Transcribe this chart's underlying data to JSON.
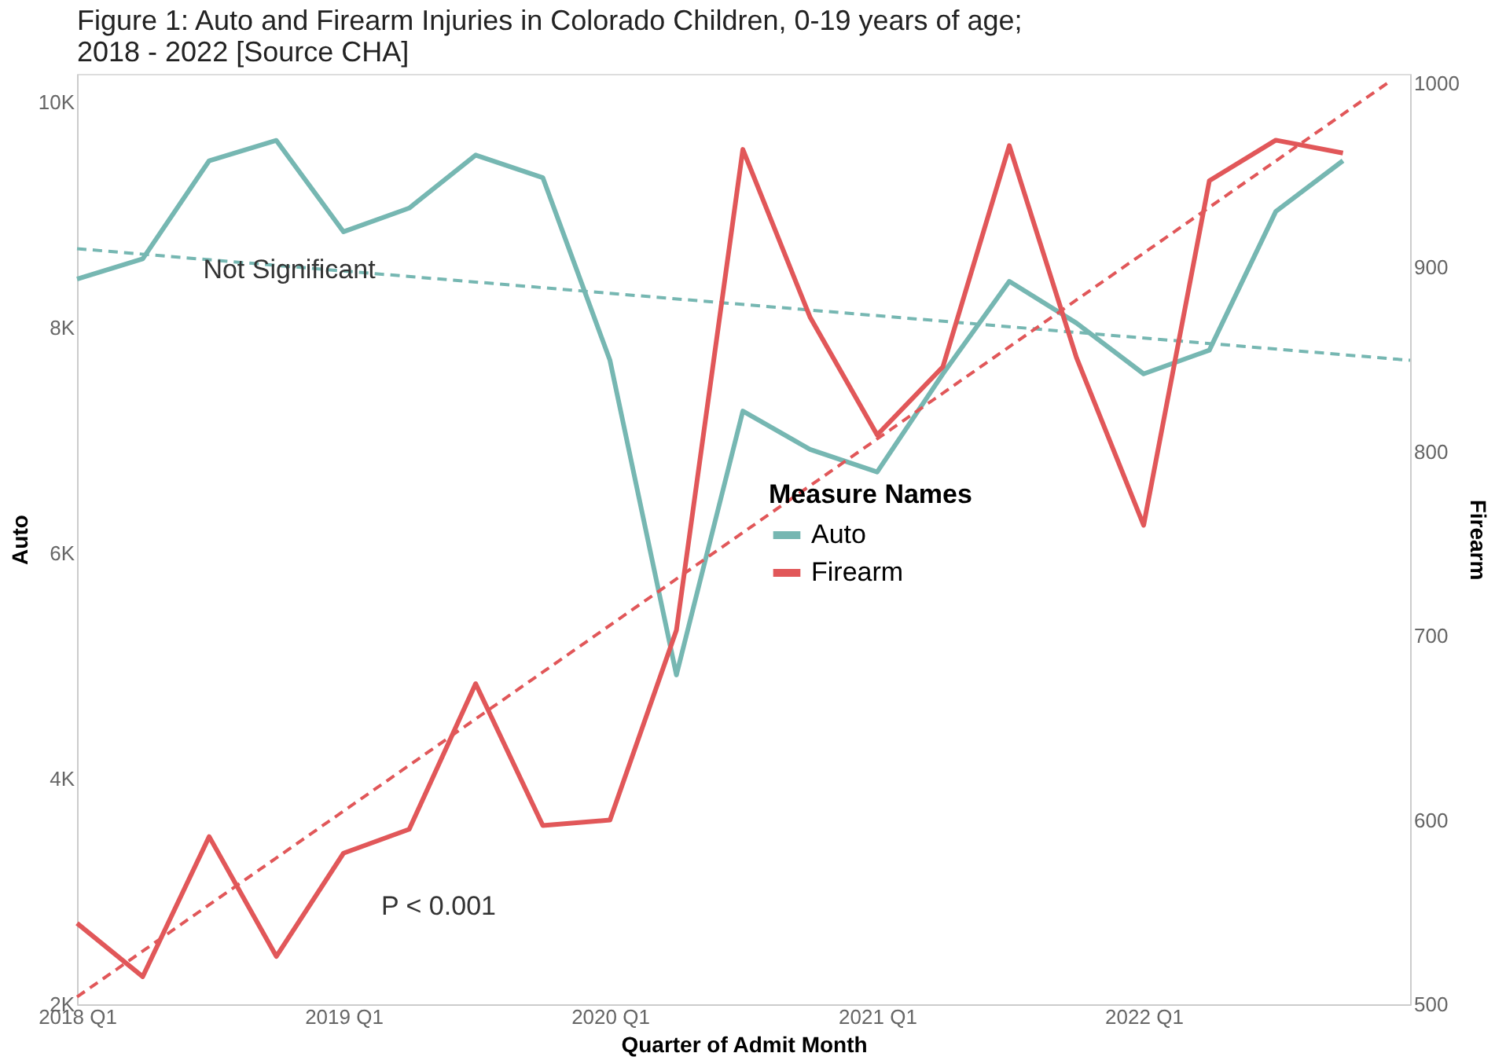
{
  "chart_data": {
    "type": "line",
    "title": [
      "Figure 1: Auto and Firearm Injuries in Colorado Children, 0-19 years of age;",
      "2018 - 2022 [Source CHA]"
    ],
    "xlabel": "Quarter of Admit Month",
    "ylabel": "Auto",
    "y2label": "Firearm",
    "legend_title": "Measure Names",
    "legend": "right",
    "x": [
      "2018-01-01",
      "2018-04-01",
      "2018-07-01",
      "2018-10-01",
      "2019-01-01",
      "2019-04-01",
      "2019-07-01",
      "2019-10-01",
      "2020-01-01",
      "2020-04-01",
      "2020-07-01",
      "2020-10-01",
      "2021-01-01",
      "2021-04-01",
      "2021-07-01",
      "2021-10-01",
      "2022-01-01",
      "2022-04-01",
      "2022-07-01",
      "2022-10-01"
    ],
    "xlim": [
      "2018-01-01",
      "2023-01-01"
    ],
    "xticks": [
      {
        "value": "2018-01-01",
        "label": "2018 Q1"
      },
      {
        "value": "2019-01-01",
        "label": "2019 Q1"
      },
      {
        "value": "2020-01-01",
        "label": "2020 Q1"
      },
      {
        "value": "2021-01-01",
        "label": "2021 Q1"
      },
      {
        "value": "2022-01-01",
        "label": "2022 Q1"
      }
    ],
    "ylim": [
      2000,
      10250
    ],
    "yticks": [
      {
        "value": 2000,
        "label": "2K"
      },
      {
        "value": 4000,
        "label": "4K"
      },
      {
        "value": 6000,
        "label": "6K"
      },
      {
        "value": 8000,
        "label": "8K"
      },
      {
        "value": 10000,
        "label": "10K"
      }
    ],
    "y2lim": [
      500,
      1005
    ],
    "y2ticks": [
      500,
      600,
      700,
      800,
      900,
      1000
    ],
    "series": [
      {
        "name": "Auto",
        "color": "#76b7b2",
        "line_style": "solid",
        "values": [
          8430,
          8610,
          9480,
          9660,
          8850,
          9060,
          9530,
          9330,
          7710,
          4920,
          7260,
          6920,
          6720,
          7590,
          8410,
          8040,
          7590,
          7800,
          9030,
          9480
        ]
      },
      {
        "name": "Firearm",
        "color": "#e15759",
        "line_style": "solid",
        "axis": "y2",
        "values": [
          544,
          515,
          591,
          526,
          582,
          595,
          674,
          597,
          600,
          703,
          964,
          873,
          809,
          846,
          966,
          851,
          760,
          947,
          969,
          962
        ]
      },
      {
        "type": "line",
        "color": "#76b7b2",
        "line_style": "dashed",
        "x": [
          "2018-01-01",
          "2023-01-01"
        ],
        "values": [
          8700,
          7710
        ]
      },
      {
        "type": "line",
        "color": "#e15759",
        "line_style": "dashed",
        "axis": "y2",
        "x": [
          "2018-01-01",
          "2022-12-01"
        ],
        "values": [
          504,
          1000
        ]
      }
    ],
    "annotations": [
      "Not Significant",
      "P < 0.001"
    ]
  }
}
